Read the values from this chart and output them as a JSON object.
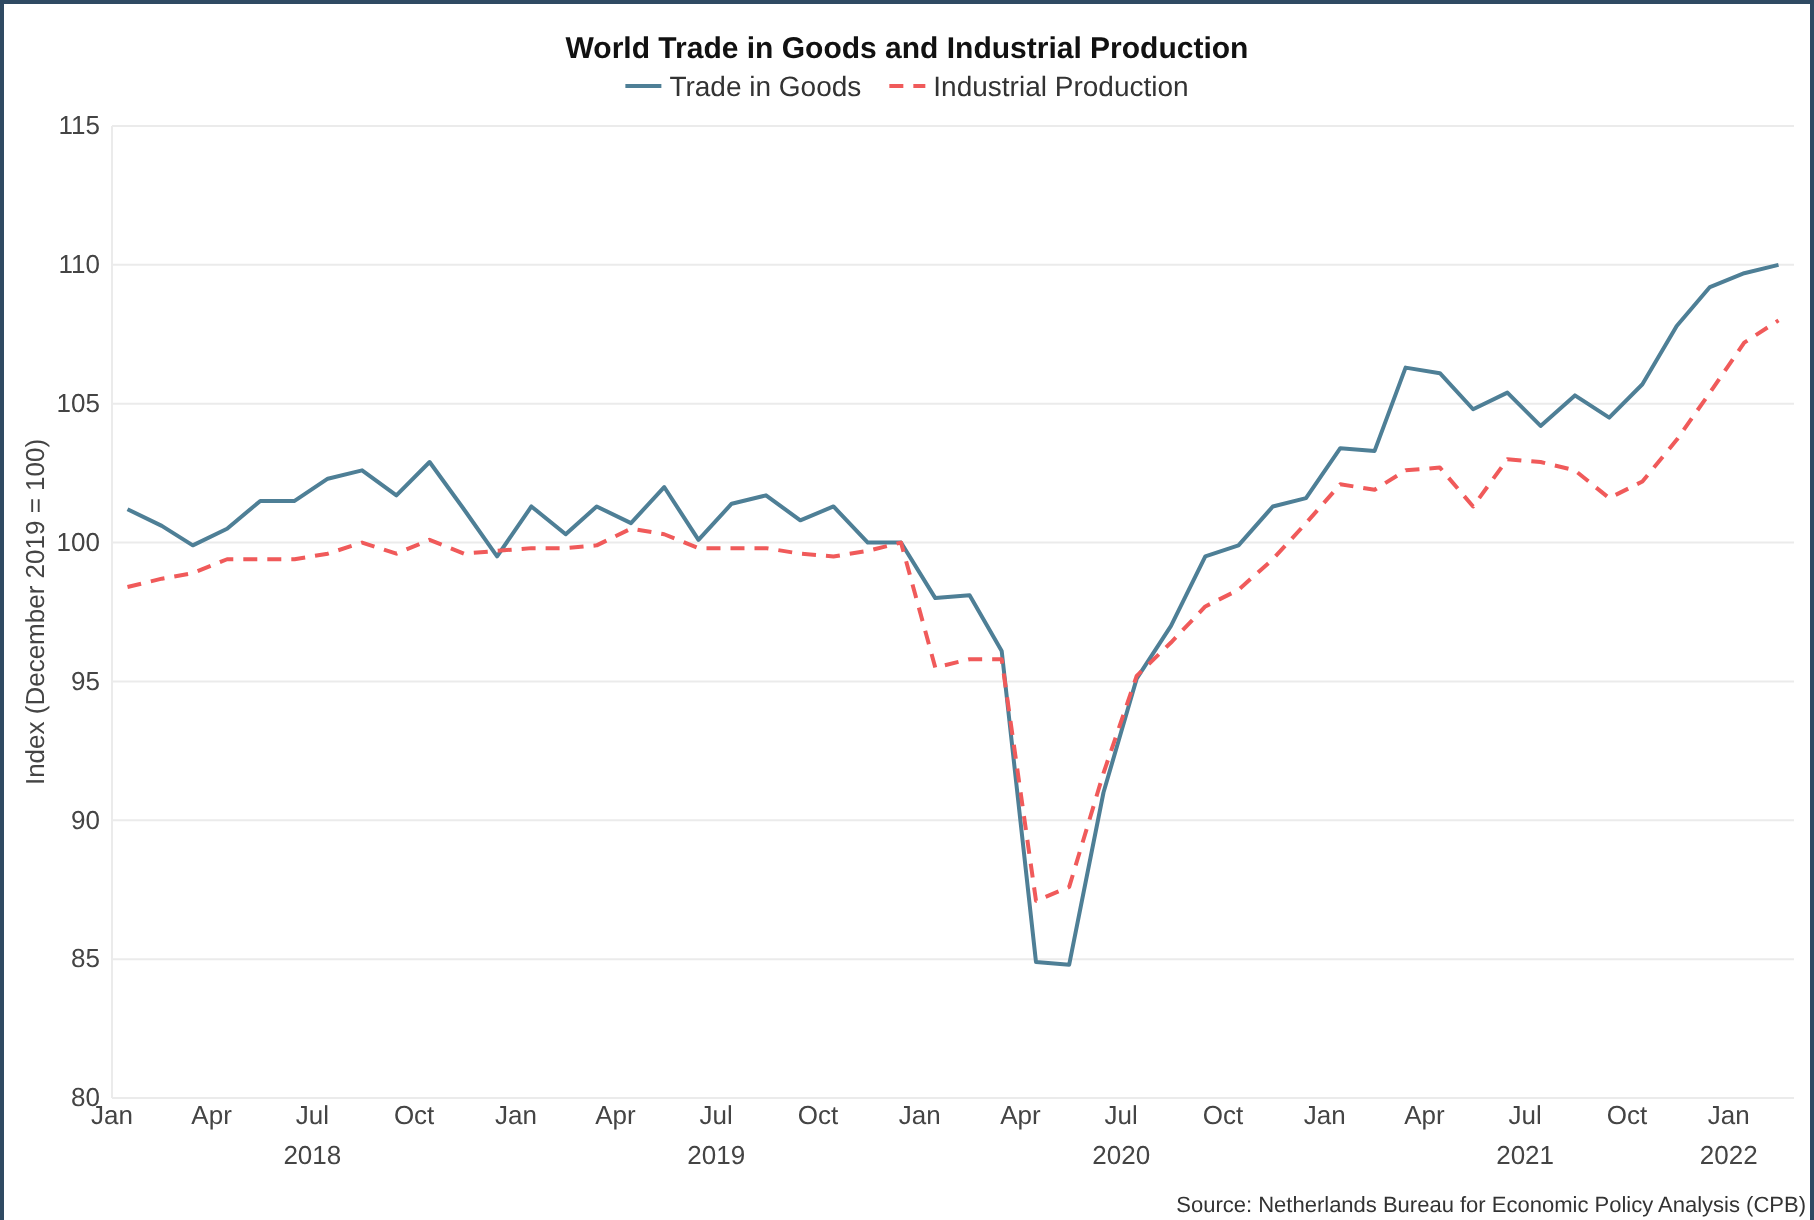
{
  "chart_data": {
    "type": "line",
    "title": "World Trade in Goods and Industrial Production",
    "ylabel": "Index (December 2019 = 100)",
    "x": [
      "2018-01-15",
      "2018-02-15",
      "2018-03-15",
      "2018-04-15",
      "2018-05-15",
      "2018-06-15",
      "2018-07-15",
      "2018-08-15",
      "2018-09-15",
      "2018-10-15",
      "2018-11-15",
      "2018-12-15",
      "2019-01-15",
      "2019-02-15",
      "2019-03-15",
      "2019-04-15",
      "2019-05-15",
      "2019-06-15",
      "2019-07-15",
      "2019-08-15",
      "2019-09-15",
      "2019-10-15",
      "2019-11-15",
      "2019-12-15",
      "2020-01-15",
      "2020-02-15",
      "2020-03-15",
      "2020-04-15",
      "2020-05-15",
      "2020-06-15",
      "2020-07-15",
      "2020-08-15",
      "2020-09-15",
      "2020-10-15",
      "2020-11-15",
      "2020-12-15",
      "2021-01-15",
      "2021-02-15",
      "2021-03-15",
      "2021-04-15",
      "2021-05-15",
      "2021-06-15",
      "2021-07-15",
      "2021-08-15",
      "2021-09-15",
      "2021-10-15",
      "2021-11-15",
      "2021-12-15",
      "2022-01-15",
      "2022-02-15"
    ],
    "series": [
      {
        "name": "Trade in Goods",
        "color": "#4e7f96",
        "line_style": "solid",
        "values": [
          101.2,
          100.6,
          99.9,
          100.5,
          101.5,
          101.5,
          102.3,
          102.6,
          101.7,
          102.9,
          101.2,
          99.5,
          101.3,
          100.3,
          101.3,
          100.7,
          102.0,
          100.1,
          101.4,
          101.7,
          100.8,
          101.3,
          100.0,
          100.0,
          98.0,
          98.1,
          96.1,
          84.9,
          84.8,
          91.0,
          95.1,
          97.0,
          99.5,
          99.9,
          101.3,
          101.6,
          103.4,
          103.3,
          106.3,
          106.1,
          104.8,
          105.4,
          104.2,
          105.3,
          104.5,
          105.7,
          107.8,
          109.2,
          109.7,
          110.0
        ]
      },
      {
        "name": "Industrial Production",
        "color": "#f05a5a",
        "line_style": "dashed",
        "values": [
          98.4,
          98.7,
          98.9,
          99.4,
          99.4,
          99.4,
          99.6,
          100.0,
          99.6,
          100.1,
          99.6,
          99.7,
          99.8,
          99.8,
          99.9,
          100.5,
          100.3,
          99.8,
          99.8,
          99.8,
          99.6,
          99.5,
          99.7,
          100.0,
          95.5,
          95.8,
          95.8,
          87.1,
          87.6,
          91.7,
          95.2,
          96.4,
          97.7,
          98.3,
          99.4,
          100.7,
          102.1,
          101.9,
          102.6,
          102.7,
          101.3,
          103.0,
          102.9,
          102.6,
          101.6,
          102.2,
          103.7,
          105.4,
          107.2,
          108.0
        ]
      }
    ],
    "xlim": [
      "2018-01-01",
      "2022-03-01"
    ],
    "xticks": [
      {
        "value": "2018-01-01",
        "label": "Jan"
      },
      {
        "value": "2018-04-01",
        "label": "Apr"
      },
      {
        "value": "2018-07-01",
        "label": "Jul\n2018"
      },
      {
        "value": "2018-10-01",
        "label": "Oct"
      },
      {
        "value": "2019-01-01",
        "label": "Jan"
      },
      {
        "value": "2019-04-01",
        "label": "Apr"
      },
      {
        "value": "2019-07-01",
        "label": "Jul\n2019"
      },
      {
        "value": "2019-10-01",
        "label": "Oct"
      },
      {
        "value": "2020-01-01",
        "label": "Jan"
      },
      {
        "value": "2020-04-01",
        "label": "Apr"
      },
      {
        "value": "2020-07-01",
        "label": "Jul\n2020"
      },
      {
        "value": "2020-10-01",
        "label": "Oct"
      },
      {
        "value": "2021-01-01",
        "label": "Jan"
      },
      {
        "value": "2021-04-01",
        "label": "Apr"
      },
      {
        "value": "2021-07-01",
        "label": "Jul\n2021"
      },
      {
        "value": "2021-10-01",
        "label": "Oct"
      },
      {
        "value": "2022-01-01",
        "label": "Jan\n2022"
      }
    ],
    "ylim": [
      80,
      115
    ],
    "yticks": [
      80,
      85,
      90,
      95,
      100,
      105,
      110,
      115
    ],
    "grid": "y",
    "legend": "top",
    "marker": "none",
    "annotations": [
      "Source: Netherlands Bureau for Economic Policy Analysis (CPB)"
    ]
  }
}
